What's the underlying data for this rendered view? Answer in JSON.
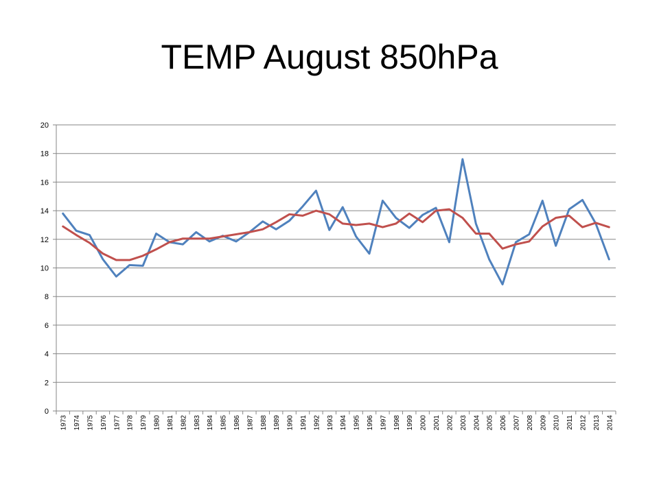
{
  "slide": {
    "title": "TEMP August 850hPa"
  },
  "chart_data": {
    "type": "line",
    "title": "TEMP August 850hPa",
    "xlabel": "",
    "ylabel": "",
    "ylim": [
      0,
      20
    ],
    "yticks": [
      0,
      2,
      4,
      6,
      8,
      10,
      12,
      14,
      16,
      18,
      20
    ],
    "grid": true,
    "legend": "none",
    "categories": [
      "1973",
      "1974",
      "1975",
      "1976",
      "1977",
      "1978",
      "1979",
      "1980",
      "1981",
      "1982",
      "1983",
      "1984",
      "1985",
      "1986",
      "1987",
      "1988",
      "1989",
      "1990",
      "1991",
      "1992",
      "1993",
      "1994",
      "1995",
      "1996",
      "1997",
      "1998",
      "1999",
      "2000",
      "2001",
      "2002",
      "2003",
      "2004",
      "2005",
      "2006",
      "2007",
      "2008",
      "2009",
      "2010",
      "2011",
      "2012",
      "2013",
      "2014"
    ],
    "series": [
      {
        "color": "#4F81BD",
        "values": [
          13.8,
          12.6,
          12.3,
          10.6,
          9.4,
          10.2,
          10.15,
          12.4,
          11.8,
          11.65,
          12.5,
          11.85,
          12.25,
          11.85,
          12.5,
          13.25,
          12.7,
          13.3,
          14.3,
          15.4,
          12.65,
          14.25,
          12.2,
          11.0,
          14.7,
          13.5,
          12.8,
          13.7,
          14.2,
          11.8,
          17.6,
          13.1,
          10.6,
          8.85,
          11.8,
          12.35,
          14.7,
          11.55,
          14.1,
          14.75,
          13.1,
          10.6
        ]
      },
      {
        "color": "#C0504D",
        "values": [
          12.9,
          12.3,
          11.75,
          11.0,
          10.55,
          10.55,
          10.85,
          11.3,
          11.8,
          12.05,
          12.05,
          12.05,
          12.2,
          12.35,
          12.5,
          12.7,
          13.2,
          13.75,
          13.65,
          14.0,
          13.75,
          13.1,
          13.0,
          13.1,
          12.85,
          13.1,
          13.8,
          13.2,
          14.0,
          14.1,
          13.5,
          12.4,
          12.4,
          11.35,
          11.65,
          11.85,
          12.9,
          13.5,
          13.65,
          12.85,
          13.15,
          12.85
        ]
      }
    ]
  }
}
